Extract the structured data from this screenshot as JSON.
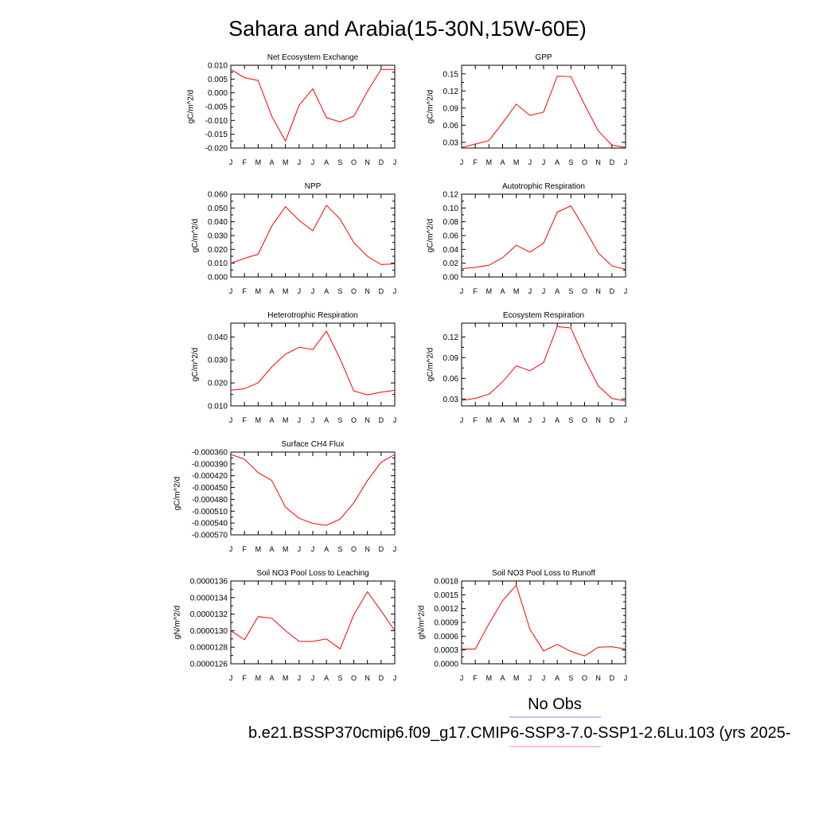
{
  "figure": {
    "title": "Sahara and Arabia(15-30N,15W-60E)"
  },
  "legend": {
    "items": [
      {
        "label": "No Obs",
        "color": "#8888ff"
      },
      {
        "label": "b.e21.BSSP370cmip6.f09_g17.CMIP6-SSP3-7.0-SSP1-2.6Lu.103 (yrs 2025-",
        "color": "#ff8888"
      }
    ]
  },
  "chart_data": [
    {
      "type": "line",
      "title": "Net Ecosystem Exchange",
      "ylabel": "gC/m^2/d",
      "categories": [
        "J",
        "F",
        "M",
        "A",
        "M",
        "J",
        "J",
        "A",
        "S",
        "O",
        "N",
        "D",
        "J"
      ],
      "ylim": [
        -0.02,
        0.01
      ],
      "yticks": [
        "0.010",
        "0.005",
        "0.000",
        "-0.005",
        "-0.010",
        "-0.015",
        "-0.020"
      ],
      "series": [
        {
          "color": "#ff0000",
          "values": [
            0.0085,
            0.0055,
            0.0045,
            -0.0085,
            -0.0175,
            -0.0045,
            0.0015,
            -0.009,
            -0.0105,
            -0.0085,
            0.0005,
            0.0085,
            0.0085
          ]
        }
      ]
    },
    {
      "type": "line",
      "title": "GPP",
      "ylabel": "gC/m^2/d",
      "categories": [
        "J",
        "F",
        "M",
        "A",
        "M",
        "J",
        "J",
        "A",
        "S",
        "O",
        "N",
        "D",
        "J"
      ],
      "ylim": [
        0.02,
        0.165
      ],
      "yticks": [
        "0.15",
        "0.12",
        "0.09",
        "0.06",
        "0.03"
      ],
      "series": [
        {
          "color": "#ff0000",
          "values": [
            0.021,
            0.027,
            0.033,
            0.064,
            0.097,
            0.077,
            0.083,
            0.146,
            0.145,
            0.096,
            0.05,
            0.025,
            0.021
          ]
        }
      ]
    },
    {
      "type": "line",
      "title": "NPP",
      "ylabel": "gC/m^2/d",
      "categories": [
        "J",
        "F",
        "M",
        "A",
        "M",
        "J",
        "J",
        "A",
        "S",
        "O",
        "N",
        "D",
        "J"
      ],
      "ylim": [
        0.0,
        0.06
      ],
      "yticks": [
        "0.060",
        "0.050",
        "0.040",
        "0.030",
        "0.020",
        "0.010",
        "0.000"
      ],
      "series": [
        {
          "color": "#ff0000",
          "values": [
            0.01,
            0.0135,
            0.0165,
            0.037,
            0.051,
            0.041,
            0.0335,
            0.052,
            0.042,
            0.025,
            0.015,
            0.009,
            0.0095
          ]
        }
      ]
    },
    {
      "type": "line",
      "title": "Autotrophic Respiration",
      "ylabel": "gC/m^2/d",
      "categories": [
        "J",
        "F",
        "M",
        "A",
        "M",
        "J",
        "J",
        "A",
        "S",
        "O",
        "N",
        "D",
        "J"
      ],
      "ylim": [
        0.0,
        0.12
      ],
      "yticks": [
        "0.12",
        "0.10",
        "0.08",
        "0.06",
        "0.04",
        "0.02",
        "0.00"
      ],
      "series": [
        {
          "color": "#ff0000",
          "values": [
            0.012,
            0.014,
            0.017,
            0.028,
            0.046,
            0.036,
            0.049,
            0.094,
            0.103,
            0.07,
            0.035,
            0.016,
            0.011
          ]
        }
      ]
    },
    {
      "type": "line",
      "title": "Heterotrophic Respiration",
      "ylabel": "gC/m^2/d",
      "categories": [
        "J",
        "F",
        "M",
        "A",
        "M",
        "J",
        "J",
        "A",
        "S",
        "O",
        "N",
        "D",
        "J"
      ],
      "ylim": [
        0.01,
        0.046
      ],
      "yticks": [
        "0.040",
        "0.030",
        "0.020",
        "0.010"
      ],
      "series": [
        {
          "color": "#ff0000",
          "values": [
            0.0168,
            0.0175,
            0.02,
            0.027,
            0.0325,
            0.0355,
            0.0345,
            0.0425,
            0.0305,
            0.0165,
            0.0148,
            0.016,
            0.0168
          ]
        }
      ]
    },
    {
      "type": "line",
      "title": "Ecosystem Respiration",
      "ylabel": "gC/m^2/d",
      "categories": [
        "J",
        "F",
        "M",
        "A",
        "M",
        "J",
        "J",
        "A",
        "S",
        "O",
        "N",
        "D",
        "J"
      ],
      "ylim": [
        0.02,
        0.14
      ],
      "yticks": [
        "0.12",
        "0.09",
        "0.06",
        "0.03"
      ],
      "series": [
        {
          "color": "#ff0000",
          "values": [
            0.028,
            0.031,
            0.037,
            0.055,
            0.078,
            0.071,
            0.083,
            0.135,
            0.133,
            0.088,
            0.049,
            0.031,
            0.027
          ]
        }
      ]
    },
    {
      "type": "line",
      "title": "Surface CH4 Flux",
      "ylabel": "gC/m^2/d",
      "categories": [
        "J",
        "F",
        "M",
        "A",
        "M",
        "J",
        "J",
        "A",
        "S",
        "O",
        "N",
        "D",
        "J"
      ],
      "ylim": [
        -0.00057,
        -0.00036
      ],
      "yticks": [
        "-0.000360",
        "-0.000390",
        "-0.000420",
        "-0.000450",
        "-0.000480",
        "-0.000510",
        "-0.000540",
        "-0.000570"
      ],
      "series": [
        {
          "color": "#ff0000",
          "values": [
            -0.000366,
            -0.000378,
            -0.000412,
            -0.000432,
            -0.0005,
            -0.000528,
            -0.000541,
            -0.000546,
            -0.00053,
            -0.000489,
            -0.000432,
            -0.000386,
            -0.000366
          ]
        }
      ]
    },
    {
      "type": "line",
      "title": "Soil NO3 Pool Loss to Leaching",
      "ylabel": "gN/m^2/d",
      "categories": [
        "J",
        "F",
        "M",
        "A",
        "M",
        "J",
        "J",
        "A",
        "S",
        "O",
        "N",
        "D",
        "J"
      ],
      "ylim": [
        1.26e-05,
        1.36e-05
      ],
      "yticks": [
        "0.0000136",
        "0.0000134",
        "0.0000132",
        "0.0000130",
        "0.0000128",
        "0.0000126"
      ],
      "series": [
        {
          "color": "#ff0000",
          "values": [
            1.3e-05,
            1.289e-05,
            1.317e-05,
            1.315e-05,
            1.3e-05,
            1.287e-05,
            1.287e-05,
            1.29e-05,
            1.278e-05,
            1.319e-05,
            1.347e-05,
            1.324e-05,
            1.3e-05
          ]
        }
      ]
    },
    {
      "type": "line",
      "title": "Soil NO3 Pool Loss to Runoff",
      "ylabel": "gN/m^2/d",
      "categories": [
        "J",
        "F",
        "M",
        "A",
        "M",
        "J",
        "J",
        "A",
        "S",
        "O",
        "N",
        "D",
        "J"
      ],
      "ylim": [
        0.0,
        0.0018
      ],
      "yticks": [
        "0.0018",
        "0.0015",
        "0.0012",
        "0.0009",
        "0.0006",
        "0.0003",
        "0.0000"
      ],
      "series": [
        {
          "color": "#ff0000",
          "values": [
            0.00032,
            0.00032,
            0.00087,
            0.00137,
            0.00171,
            0.00075,
            0.00028,
            0.00042,
            0.00027,
            0.00017,
            0.00036,
            0.00037,
            0.00032
          ]
        }
      ]
    }
  ]
}
